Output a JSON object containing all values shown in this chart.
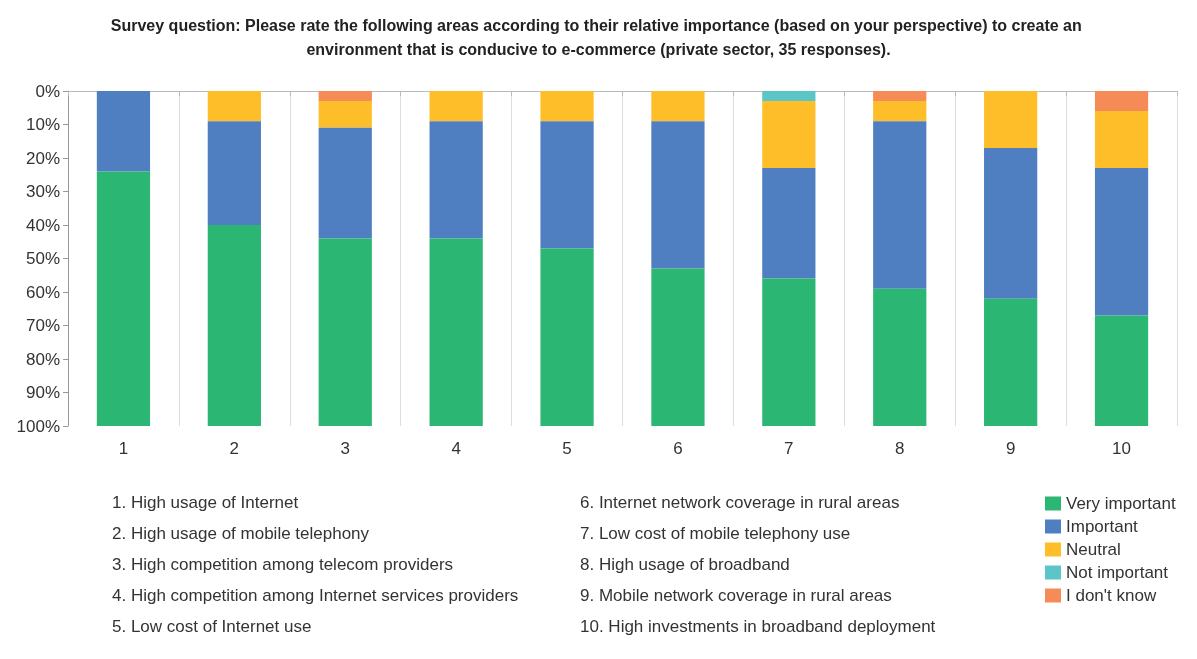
{
  "chart_data": {
    "type": "bar",
    "stacked": true,
    "title": "Survey question: Please rate the following areas according to their relative importance (based on your perspective) to create an environment that is conducive to e-commerce (private sector, 35 responses).",
    "categories": [
      "1",
      "2",
      "3",
      "4",
      "5",
      "6",
      "7",
      "8",
      "9",
      "10"
    ],
    "series": [
      {
        "name": "I don't know",
        "color": "#f58b56",
        "values": [
          0,
          0,
          3,
          0,
          0,
          0,
          0,
          3,
          0,
          6
        ]
      },
      {
        "name": "Not important",
        "color": "#5bc5c8",
        "values": [
          0,
          0,
          0,
          0,
          0,
          0,
          3,
          0,
          0,
          0
        ]
      },
      {
        "name": "Neutral",
        "color": "#fdbe2a",
        "values": [
          0,
          9,
          8,
          9,
          9,
          9,
          20,
          6,
          17,
          17
        ]
      },
      {
        "name": "Important",
        "color": "#4f7fc0",
        "values": [
          24,
          31,
          33,
          35,
          38,
          44,
          33,
          50,
          45,
          44
        ]
      },
      {
        "name": "Very important",
        "color": "#2bb673",
        "values": [
          76,
          60,
          56,
          56,
          53,
          47,
          44,
          41,
          38,
          33
        ]
      }
    ],
    "ylim": [
      100,
      0
    ],
    "yticks": [
      {
        "value": 0,
        "label": "0%"
      },
      {
        "value": 10,
        "label": "10%"
      },
      {
        "value": 20,
        "label": "20%"
      },
      {
        "value": 30,
        "label": "30%"
      },
      {
        "value": 40,
        "label": "40%"
      },
      {
        "value": 50,
        "label": "50%"
      },
      {
        "value": 60,
        "label": "60%"
      },
      {
        "value": 70,
        "label": "70%"
      },
      {
        "value": 80,
        "label": "80%"
      },
      {
        "value": 90,
        "label": "90%"
      },
      {
        "value": 100,
        "label": "100%"
      }
    ],
    "grid": "x",
    "legend": "bottom right",
    "annotations": [
      "1. High usage of Internet",
      "2. High usage of mobile telephony",
      "3. High competition among telecom providers",
      "4. High competition among Internet services providers",
      "5. Low cost of Internet use",
      "6. Internet network coverage in rural areas",
      "7. Low cost of mobile telephony use",
      "8. High usage of broadband",
      "9. Mobile network coverage in rural areas",
      "10. High investments in broadband deployment"
    ]
  }
}
